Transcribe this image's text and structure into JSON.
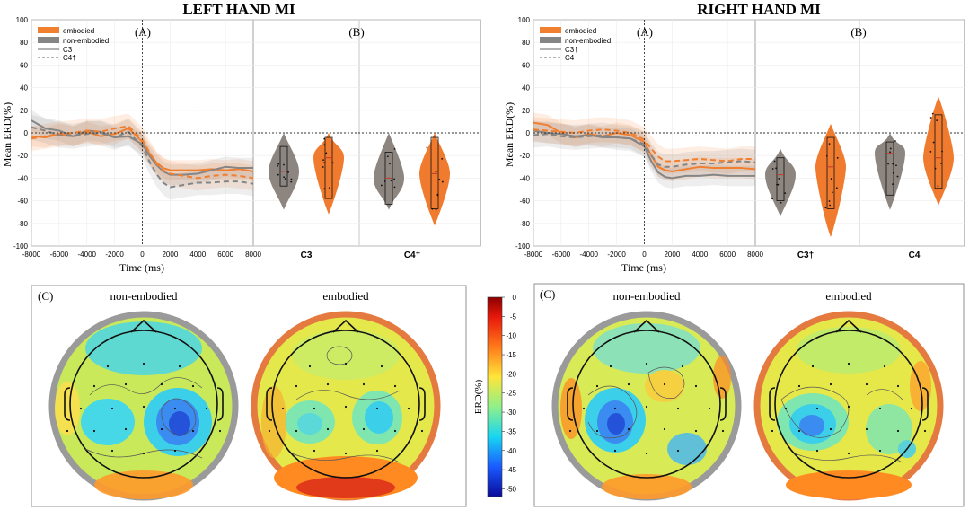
{
  "figure": {
    "left_title": "LEFT HAND MI",
    "right_title": "RIGHT HAND MI",
    "panel_a": "(A)",
    "panel_b": "(B)",
    "panel_c": "(C)",
    "ylabel": "Mean ERD(%)",
    "xlabel": "Time (ms)",
    "legend_embodied": "embodied",
    "legend_nonembodied": "non-embodied",
    "topo_nonembodied": "non-embodied",
    "topo_embodied": "embodied",
    "colorbar_label": "ERD(%)"
  },
  "colors": {
    "embodied": "#F07F2F",
    "non_embodied": "#858585",
    "embodied_violin": "#F07A2E",
    "non_embodied_violin": "#8C8580"
  },
  "chart_data": [
    {
      "id": "left",
      "type": "line",
      "title": "LEFT HAND MI",
      "xlabel": "Time (ms)",
      "ylabel": "Mean ERD(%)",
      "xlim": [
        -8000,
        8000
      ],
      "ylim": [
        -100,
        100
      ],
      "xticks": [
        -8000,
        -6000,
        -4000,
        -2000,
        0,
        2000,
        4000,
        6000,
        8000
      ],
      "yticks": [
        -100,
        -80,
        -60,
        -40,
        -20,
        0,
        20,
        40,
        60,
        80,
        100
      ],
      "legend": [
        "embodied",
        "non-embodied",
        "C3",
        "C4†"
      ],
      "series": [
        {
          "name": "embodied C3",
          "condition": "embodied",
          "channel": "C3",
          "x": [
            -8000,
            -7000,
            -6000,
            -5000,
            -4000,
            -3000,
            -2000,
            -1000,
            0,
            500,
            1000,
            1500,
            2000,
            3000,
            4000,
            5000,
            6000,
            7000,
            8000
          ],
          "y": [
            -3,
            -4,
            -1,
            -3,
            1,
            -3,
            -1,
            4,
            -8,
            -18,
            -26,
            -31,
            -33,
            -33,
            -33,
            -32,
            -33,
            -32,
            -34
          ]
        },
        {
          "name": "non-embodied C3",
          "condition": "non-embodied",
          "channel": "C3",
          "x": [
            -8000,
            -7000,
            -6000,
            -5000,
            -4000,
            -3000,
            -2000,
            -1000,
            0,
            500,
            1000,
            1500,
            2000,
            3000,
            4000,
            5000,
            6000,
            7000,
            8000
          ],
          "y": [
            11,
            4,
            2,
            -3,
            2,
            1,
            -4,
            -3,
            -10,
            -20,
            -28,
            -34,
            -37,
            -37,
            -36,
            -33,
            -30,
            -31,
            -31
          ]
        },
        {
          "name": "embodied C4",
          "condition": "embodied",
          "channel": "C4†",
          "x": [
            -8000,
            -7000,
            -6000,
            -5000,
            -4000,
            -3000,
            -2000,
            -1000,
            0,
            500,
            1000,
            1500,
            2000,
            3000,
            4000,
            5000,
            6000,
            7000,
            8000
          ],
          "y": [
            -5,
            -3,
            -1,
            0,
            2,
            1,
            4,
            6,
            -6,
            -17,
            -27,
            -33,
            -36,
            -38,
            -40,
            -38,
            -37,
            -38,
            -40
          ]
        },
        {
          "name": "non-embodied C4",
          "condition": "non-embodied",
          "channel": "C4†",
          "x": [
            -8000,
            -7000,
            -6000,
            -5000,
            -4000,
            -3000,
            -2000,
            -1000,
            0,
            500,
            1000,
            1500,
            2000,
            3000,
            4000,
            5000,
            6000,
            7000,
            8000
          ],
          "y": [
            5,
            2,
            -2,
            -3,
            -1,
            0,
            -4,
            1,
            -12,
            -25,
            -36,
            -44,
            -48,
            -46,
            -44,
            -44,
            -43,
            -43,
            -45
          ]
        }
      ],
      "violins": {
        "categories": [
          "C3",
          "C4†"
        ],
        "groups": [
          {
            "category": "C3",
            "condition": "non-embodied",
            "median": -34,
            "q1": -47,
            "q3": -12,
            "min": -68,
            "max": 0
          },
          {
            "category": "C3",
            "condition": "embodied",
            "median": -22,
            "q1": -58,
            "q3": -4,
            "min": -72,
            "max": 0
          },
          {
            "category": "C4†",
            "condition": "non-embodied",
            "median": -40,
            "q1": -63,
            "q3": -17,
            "min": -68,
            "max": 0
          },
          {
            "category": "C4†",
            "condition": "embodied",
            "median": -36,
            "q1": -67,
            "q3": -4,
            "min": -82,
            "max": 0
          }
        ]
      }
    },
    {
      "id": "right",
      "type": "line",
      "title": "RIGHT HAND MI",
      "xlabel": "Time (ms)",
      "ylabel": "Mean ERD(%)",
      "xlim": [
        -8000,
        8000
      ],
      "ylim": [
        -100,
        100
      ],
      "xticks": [
        -8000,
        -6000,
        -4000,
        -2000,
        0,
        2000,
        4000,
        6000,
        8000
      ],
      "yticks": [
        -100,
        -80,
        -60,
        -40,
        -20,
        0,
        20,
        40,
        60,
        80,
        100
      ],
      "legend": [
        "embodied",
        "non-embodied",
        "C3†",
        "C4"
      ],
      "series": [
        {
          "name": "embodied C3",
          "condition": "embodied",
          "channel": "C3†",
          "x": [
            -8000,
            -7000,
            -6000,
            -5000,
            -4000,
            -3000,
            -2000,
            -1000,
            0,
            500,
            1000,
            1500,
            2000,
            3000,
            4000,
            5000,
            6000,
            7000,
            8000
          ],
          "y": [
            9,
            7,
            0,
            -4,
            -1,
            -3,
            0,
            -2,
            -8,
            -20,
            -30,
            -33,
            -34,
            -32,
            -30,
            -31,
            -31,
            -31,
            -32
          ]
        },
        {
          "name": "non-embodied C3",
          "condition": "non-embodied",
          "channel": "C3†",
          "x": [
            -8000,
            -7000,
            -6000,
            -5000,
            -4000,
            -3000,
            -2000,
            -1000,
            0,
            500,
            1000,
            1500,
            2000,
            3000,
            4000,
            5000,
            6000,
            7000,
            8000
          ],
          "y": [
            2,
            0,
            -1,
            -3,
            -2,
            -4,
            -4,
            -5,
            -12,
            -25,
            -35,
            -39,
            -40,
            -38,
            -38,
            -37,
            -38,
            -38,
            -38
          ]
        },
        {
          "name": "embodied C4",
          "condition": "embodied",
          "channel": "C4",
          "x": [
            -8000,
            -7000,
            -6000,
            -5000,
            -4000,
            -3000,
            -2000,
            -1000,
            0,
            500,
            1000,
            1500,
            2000,
            3000,
            4000,
            5000,
            6000,
            7000,
            8000
          ],
          "y": [
            3,
            2,
            1,
            0,
            2,
            3,
            2,
            0,
            -6,
            -14,
            -21,
            -25,
            -25,
            -24,
            -23,
            -24,
            -25,
            -23,
            -23
          ]
        },
        {
          "name": "non-embodied C4",
          "condition": "non-embodied",
          "channel": "C4",
          "x": [
            -8000,
            -7000,
            -6000,
            -5000,
            -4000,
            -3000,
            -2000,
            -1000,
            0,
            500,
            1000,
            1500,
            2000,
            3000,
            4000,
            5000,
            6000,
            7000,
            8000
          ],
          "y": [
            -2,
            -1,
            -3,
            -4,
            -3,
            -2,
            -4,
            -5,
            -10,
            -20,
            -28,
            -30,
            -30,
            -28,
            -27,
            -27,
            -26,
            -25,
            -26
          ]
        }
      ],
      "violins": {
        "categories": [
          "C3†",
          "C4"
        ],
        "groups": [
          {
            "category": "C3†",
            "condition": "non-embodied",
            "median": -37,
            "q1": -60,
            "q3": -22,
            "min": -74,
            "max": -14
          },
          {
            "category": "C3†",
            "condition": "embodied",
            "median": -30,
            "q1": -67,
            "q3": -4,
            "min": -92,
            "max": 8
          },
          {
            "category": "C4",
            "condition": "non-embodied",
            "median": -18,
            "q1": -55,
            "q3": -8,
            "min": -68,
            "max": 0
          },
          {
            "category": "C4",
            "condition": "embodied",
            "median": -22,
            "q1": -49,
            "q3": 16,
            "min": -64,
            "max": 32
          }
        ]
      }
    },
    {
      "id": "colorbar",
      "type": "heatmap",
      "label": "ERD(%)",
      "range": [
        -52,
        0
      ],
      "ticks": [
        0,
        -5,
        -10,
        -15,
        -20,
        -25,
        -30,
        -35,
        -40,
        -45,
        -50
      ]
    }
  ]
}
